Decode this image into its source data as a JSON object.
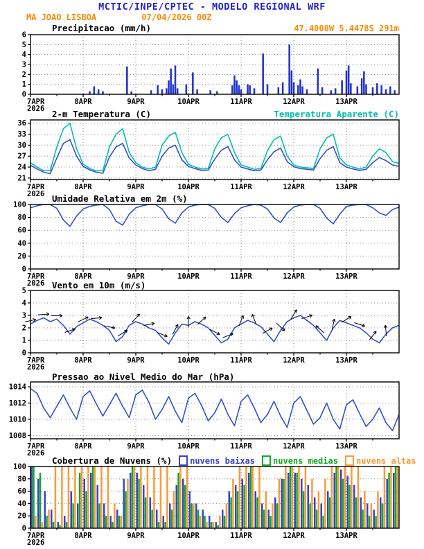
{
  "header": {
    "title": "MCTIC/INPE/CPTEC - MODELO REGIONAL WRF",
    "station": "MA JOAO LISBOA",
    "run": "07/04/2026 00Z",
    "coords": "47.4008W 5.4478S 291m"
  },
  "colors": {
    "title_blue": "#2222cc",
    "accent_orange": "#ff8800",
    "line_blue": "#3350cc",
    "cyan": "#00bfae",
    "axis_black": "#000000"
  },
  "x_axis": {
    "labels": [
      "7APR",
      "8APR",
      "9APR",
      "10APR",
      "11APR",
      "12APR",
      "13APR"
    ],
    "label_hours": [
      0,
      24,
      48,
      72,
      96,
      120,
      144
    ],
    "year": "2026",
    "hours_total": 168
  },
  "chart_data": [
    {
      "name": "precipitation",
      "type": "bar",
      "title": "Precipitacao (mm/h)",
      "ylabel": "mm/h",
      "ylim": [
        0,
        6
      ],
      "yticks": [
        0,
        1,
        2,
        3,
        4,
        5,
        6
      ],
      "bar_color": "#2233cc",
      "bars": [
        [
          27,
          0.3
        ],
        [
          29,
          0.8
        ],
        [
          31,
          0.5
        ],
        [
          33,
          0.3
        ],
        [
          44,
          2.8
        ],
        [
          46,
          0.3
        ],
        [
          55,
          0.4
        ],
        [
          58,
          0.9
        ],
        [
          60,
          0.5
        ],
        [
          62,
          0.6
        ],
        [
          63,
          1.4
        ],
        [
          64,
          2.6
        ],
        [
          65,
          1.0
        ],
        [
          66,
          2.9
        ],
        [
          67,
          0.6
        ],
        [
          71,
          1.0
        ],
        [
          74,
          2.2
        ],
        [
          76,
          0.5
        ],
        [
          82,
          0.4
        ],
        [
          85,
          0.3
        ],
        [
          92,
          0.9
        ],
        [
          93,
          1.9
        ],
        [
          94,
          1.4
        ],
        [
          95,
          0.9
        ],
        [
          96,
          0.5
        ],
        [
          99,
          1.0
        ],
        [
          100,
          0.9
        ],
        [
          102,
          0.6
        ],
        [
          106,
          4.1
        ],
        [
          108,
          1.0
        ],
        [
          113,
          0.7
        ],
        [
          115,
          1.2
        ],
        [
          118,
          5.0
        ],
        [
          119,
          2.4
        ],
        [
          120,
          1.2
        ],
        [
          122,
          0.9
        ],
        [
          123,
          1.5
        ],
        [
          124,
          0.8
        ],
        [
          126,
          0.5
        ],
        [
          131,
          2.6
        ],
        [
          133,
          0.7
        ],
        [
          137,
          0.4
        ],
        [
          139,
          0.6
        ],
        [
          142,
          1.4
        ],
        [
          144,
          2.4
        ],
        [
          145,
          2.9
        ],
        [
          146,
          1.1
        ],
        [
          149,
          0.8
        ],
        [
          151,
          1.6
        ],
        [
          152,
          2.3
        ],
        [
          153,
          1.0
        ],
        [
          156,
          0.7
        ],
        [
          158,
          1.1
        ],
        [
          160,
          0.9
        ],
        [
          162,
          0.5
        ],
        [
          164,
          0.8
        ],
        [
          166,
          0.4
        ]
      ]
    },
    {
      "name": "temperature",
      "type": "line",
      "title": "2-m Temperatura (C)",
      "title2": "Temperatura Aparente (C)",
      "ylim": [
        20.6,
        36.9
      ],
      "yticks": [
        21,
        24,
        27,
        30,
        33,
        36
      ],
      "step_hours": 3,
      "series": [
        {
          "label": "2-m Temperatura (C)",
          "id": "temp-2m-line",
          "color": "#3350cc",
          "values": [
            24.5,
            23.5,
            22.6,
            22.2,
            26.5,
            30.5,
            31.5,
            27.0,
            24.2,
            23.2,
            22.6,
            22.3,
            26.8,
            29.5,
            30.5,
            26.5,
            24.6,
            23.6,
            23.0,
            23.4,
            27.0,
            29.2,
            30.0,
            26.0,
            24.2,
            23.6,
            23.1,
            23.2,
            26.2,
            28.6,
            29.6,
            26.0,
            24.0,
            23.5,
            23.0,
            23.2,
            26.0,
            28.2,
            29.2,
            25.5,
            24.1,
            23.6,
            23.4,
            23.2,
            26.3,
            28.6,
            29.6,
            25.2,
            24.0,
            23.5,
            23.1,
            23.4,
            25.2,
            26.6,
            25.8,
            24.6,
            24.2
          ]
        },
        {
          "label": "Temperatura Aparente (C)",
          "id": "temp-apparent-line",
          "color": "#00bfae",
          "values": [
            25.2,
            24.0,
            23.0,
            23.0,
            29.5,
            34.5,
            36.0,
            29.0,
            24.8,
            23.6,
            23.0,
            23.0,
            29.5,
            33.0,
            34.5,
            28.0,
            25.2,
            24.0,
            23.5,
            24.0,
            30.0,
            32.5,
            33.5,
            28.0,
            24.8,
            24.0,
            23.5,
            23.6,
            29.0,
            32.0,
            33.0,
            28.0,
            24.6,
            24.0,
            23.4,
            23.6,
            28.5,
            31.5,
            32.5,
            27.0,
            24.6,
            24.0,
            23.8,
            23.6,
            29.0,
            32.0,
            33.0,
            26.5,
            24.6,
            24.0,
            23.5,
            24.0,
            27.0,
            29.0,
            28.0,
            25.5,
            25.0
          ]
        }
      ]
    },
    {
      "name": "humidity",
      "type": "line",
      "title": "Umidade Relativa em 2m (%)",
      "ylim": [
        0,
        100
      ],
      "yticks": [
        0,
        20,
        40,
        60,
        80,
        100
      ],
      "step_hours": 3,
      "series": [
        {
          "label": "Umidade Relativa em 2m (%)",
          "id": "humidity-line",
          "color": "#3350cc",
          "values": [
            95,
            98,
            100,
            100,
            94,
            76,
            66,
            82,
            93,
            97,
            99,
            100,
            92,
            74,
            68,
            85,
            95,
            98,
            100,
            100,
            93,
            78,
            71,
            87,
            96,
            99,
            100,
            100,
            94,
            80,
            72,
            86,
            95,
            98,
            100,
            99,
            93,
            79,
            72,
            87,
            96,
            99,
            100,
            100,
            94,
            79,
            70,
            85,
            97,
            99,
            100,
            100,
            95,
            87,
            83,
            92,
            96
          ]
        }
      ]
    },
    {
      "name": "wind",
      "type": "line",
      "title": "Vento em 10m (m/s)",
      "ylim": [
        0,
        5
      ],
      "yticks": [
        0,
        1,
        2,
        3,
        4,
        5
      ],
      "step_hours": 3,
      "series": [
        {
          "label": "Vento em 10m (m/s)",
          "id": "wind-speed-line",
          "color": "#3350cc",
          "values": [
            2.3,
            2.6,
            2.8,
            2.5,
            2.7,
            2.2,
            1.5,
            2.1,
            2.4,
            2.7,
            2.5,
            2.2,
            1.8,
            0.9,
            1.3,
            2.2,
            2.5,
            2.3,
            2.0,
            1.8,
            1.2,
            0.7,
            1.6,
            2.3,
            2.2,
            2.5,
            2.3,
            2.0,
            1.4,
            0.8,
            1.1,
            2.0,
            2.3,
            2.6,
            2.4,
            2.1,
            1.5,
            0.9,
            1.8,
            2.5,
            2.8,
            3.0,
            2.6,
            2.2,
            1.6,
            1.0,
            2.0,
            2.6,
            2.4,
            2.2,
            2.0,
            1.6,
            1.1,
            0.8,
            1.5,
            2.0,
            2.2
          ]
        }
      ],
      "arrows": {
        "color": "#000000",
        "step_hours": 6,
        "angles_deg": [
          12,
          4,
          0,
          18,
          25,
          5,
          -12,
          32,
          48,
          12,
          -22,
          62,
          88,
          42,
          -28,
          22,
          68,
          112,
          28,
          -42,
          58,
          18,
          138,
          78,
          32,
          -18,
          52,
          96
        ]
      }
    },
    {
      "name": "pressure",
      "type": "line",
      "title": "Pressao ao Nivel Medio do Mar (hPa)",
      "ylim": [
        1007.6,
        1014.6
      ],
      "yticks": [
        1008,
        1010,
        1012,
        1014
      ],
      "step_hours": 3,
      "series": [
        {
          "label": "Pressao ao Nivel Medio do Mar (hPa)",
          "id": "mslp-line",
          "color": "#3350cc",
          "values": [
            1013.8,
            1013.2,
            1011.4,
            1010.2,
            1011.6,
            1013.0,
            1011.4,
            1010.0,
            1012.8,
            1013.5,
            1011.9,
            1010.4,
            1011.8,
            1013.2,
            1011.6,
            1010.2,
            1013.0,
            1013.6,
            1012.1,
            1010.0,
            1011.2,
            1012.8,
            1011.0,
            1009.6,
            1012.6,
            1013.2,
            1011.7,
            1009.8,
            1010.8,
            1012.5,
            1010.6,
            1009.2,
            1012.2,
            1013.0,
            1011.4,
            1009.6,
            1010.6,
            1012.2,
            1010.4,
            1009.0,
            1012.0,
            1012.8,
            1011.1,
            1009.4,
            1010.2,
            1012.0,
            1010.0,
            1008.8,
            1011.8,
            1012.4,
            1010.7,
            1009.1,
            1010.0,
            1011.4,
            1009.6,
            1008.6,
            1010.6
          ]
        }
      ]
    },
    {
      "name": "cloud-cover",
      "type": "groupedbar",
      "title": "Cobertura de Nuvens (%)",
      "ylim": [
        0,
        100
      ],
      "yticks": [
        0,
        20,
        40,
        60,
        80,
        100
      ],
      "step_hours": 3,
      "series": [
        {
          "label": "nuvens baixas",
          "id": "low-clouds-bars",
          "color": "#3344cc",
          "values": [
            100,
            80,
            60,
            30,
            10,
            20,
            60,
            40,
            80,
            90,
            70,
            40,
            20,
            30,
            80,
            90,
            90,
            70,
            50,
            30,
            20,
            40,
            70,
            80,
            60,
            40,
            30,
            20,
            10,
            30,
            60,
            70,
            80,
            90,
            60,
            40,
            30,
            50,
            80,
            90,
            90,
            80,
            70,
            50,
            40,
            60,
            90,
            95,
            85,
            70,
            50,
            40,
            30,
            50,
            80,
            90
          ]
        },
        {
          "label": "nuvens medias",
          "id": "mid-clouds-bars",
          "color": "#11aa22",
          "values": [
            100,
            90,
            20,
            10,
            5,
            10,
            40,
            90,
            60,
            100,
            40,
            20,
            10,
            20,
            60,
            100,
            80,
            50,
            30,
            10,
            10,
            30,
            90,
            70,
            40,
            30,
            20,
            10,
            5,
            20,
            50,
            60,
            70,
            100,
            50,
            30,
            20,
            40,
            80,
            100,
            90,
            60,
            40,
            30,
            20,
            50,
            100,
            80,
            70,
            50,
            30,
            20,
            20,
            40,
            90,
            100
          ]
        },
        {
          "label": "nuvens altas",
          "id": "high-clouds-bars",
          "color": "#ff9933",
          "values": [
            20,
            10,
            30,
            100,
            100,
            100,
            100,
            100,
            100,
            100,
            100,
            100,
            40,
            20,
            80,
            100,
            100,
            100,
            100,
            100,
            100,
            60,
            100,
            100,
            40,
            20,
            10,
            10,
            20,
            40,
            80,
            100,
            100,
            100,
            100,
            60,
            40,
            80,
            100,
            100,
            100,
            100,
            80,
            60,
            80,
            100,
            100,
            100,
            100,
            100,
            60,
            40,
            60,
            100,
            100,
            100
          ]
        }
      ]
    }
  ]
}
